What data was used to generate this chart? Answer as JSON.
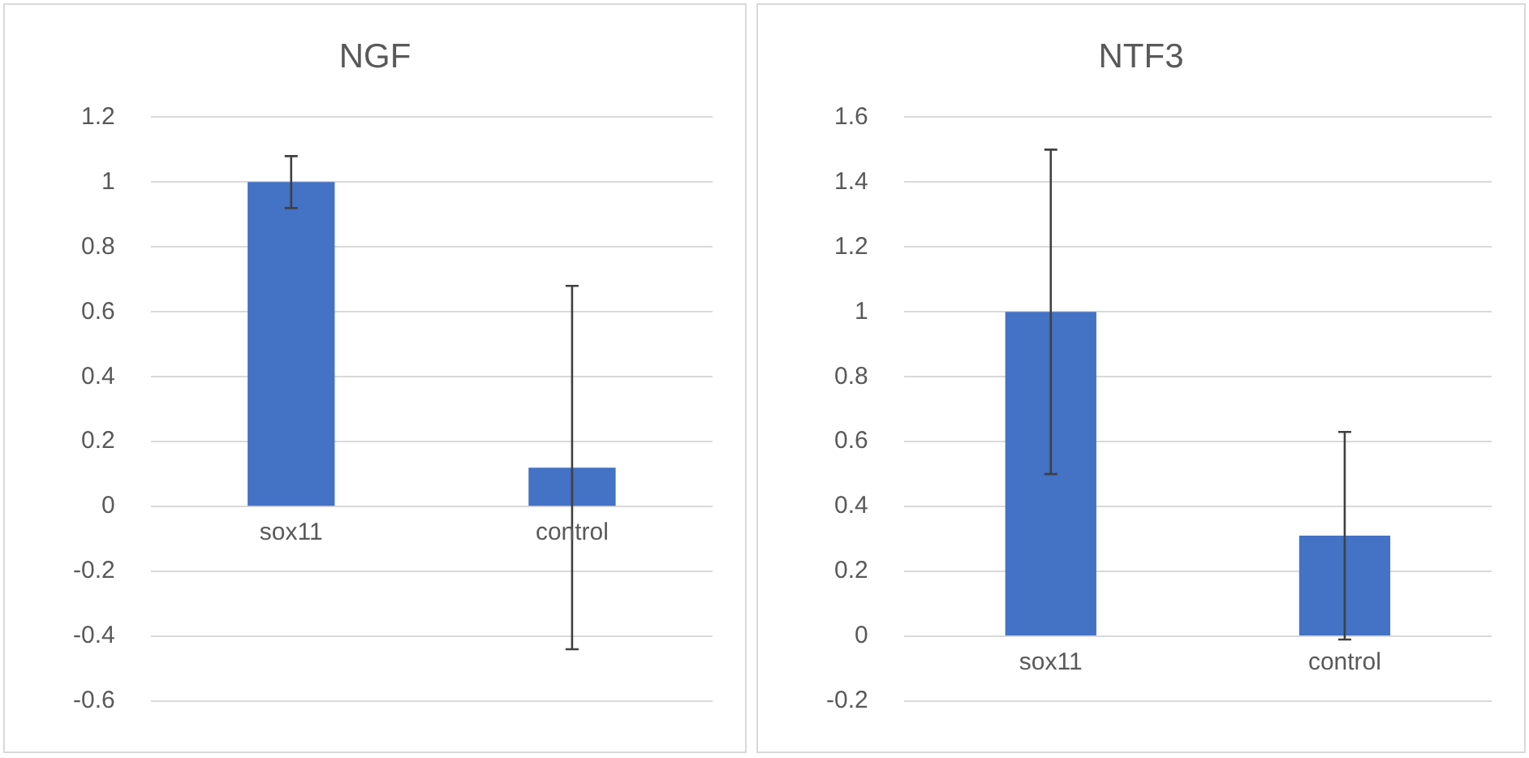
{
  "chart_data": [
    {
      "type": "bar",
      "title": "NGF",
      "categories": [
        "sox11",
        "control"
      ],
      "values": [
        1.0,
        0.12
      ],
      "errors": [
        0.08,
        0.56
      ],
      "color": "#4472c4",
      "ylim": [
        -0.6,
        1.2
      ],
      "yticks": [
        -0.6,
        -0.4,
        -0.2,
        0,
        0.2,
        0.4,
        0.6,
        0.8,
        1,
        1.2
      ],
      "grid": "y",
      "legend": false
    },
    {
      "type": "bar",
      "title": "NTF3",
      "categories": [
        "sox11",
        "control"
      ],
      "values": [
        1.0,
        0.31
      ],
      "errors": [
        0.5,
        0.32
      ],
      "color": "#4472c4",
      "ylim": [
        -0.2,
        1.6
      ],
      "yticks": [
        -0.2,
        0,
        0.2,
        0.4,
        0.6,
        0.8,
        1,
        1.2,
        1.4,
        1.6
      ],
      "grid": "y",
      "legend": false
    }
  ]
}
